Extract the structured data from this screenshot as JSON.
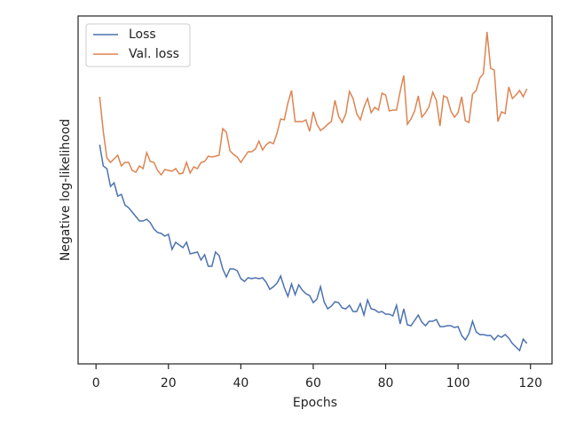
{
  "chart_data": {
    "type": "line",
    "xlabel": "Epochs",
    "ylabel": "Negative log-likelihood",
    "xlim": [
      -4.95,
      125.95
    ],
    "xticks": [
      0,
      20,
      40,
      60,
      80,
      100,
      120
    ],
    "ylim": [
      0,
      392
    ],
    "legend": "upper left",
    "x": [
      1,
      2,
      3,
      4,
      5,
      6,
      7,
      8,
      9,
      10,
      11,
      12,
      13,
      14,
      15,
      16,
      17,
      18,
      19,
      20,
      21,
      22,
      23,
      24,
      25,
      26,
      27,
      28,
      29,
      30,
      31,
      32,
      33,
      34,
      35,
      36,
      37,
      38,
      39,
      40,
      41,
      42,
      43,
      44,
      45,
      46,
      47,
      48,
      49,
      50,
      51,
      52,
      53,
      54,
      55,
      56,
      57,
      58,
      59,
      60,
      61,
      62,
      63,
      64,
      65,
      66,
      67,
      68,
      69,
      70,
      71,
      72,
      73,
      74,
      75,
      76,
      77,
      78,
      79,
      80,
      81,
      82,
      83,
      84,
      85,
      86,
      87,
      88,
      89,
      90,
      91,
      92,
      93,
      94,
      95,
      96,
      97,
      98,
      99,
      100,
      101,
      102,
      103,
      104,
      105,
      106,
      107,
      108,
      109,
      110,
      111,
      112,
      113,
      114,
      115,
      116,
      117,
      118,
      119
    ],
    "series": [
      {
        "name": "Loss",
        "color": "#4c72b0",
        "values": [
          247,
          223,
          220,
          200,
          204,
          189,
          191,
          179,
          176,
          171,
          166,
          161,
          161,
          163,
          159,
          152,
          148,
          147,
          144,
          146,
          129,
          137,
          134,
          131,
          137,
          124,
          125,
          126,
          117,
          123,
          110,
          110,
          126,
          122,
          107,
          98,
          107,
          107,
          105,
          96,
          93,
          97,
          96,
          97,
          96,
          97,
          92,
          84,
          87,
          91,
          99,
          86,
          76,
          90,
          78,
          89,
          83,
          79,
          77,
          69,
          73,
          87,
          70,
          62,
          65,
          70,
          69,
          63,
          62,
          66,
          59,
          59,
          68,
          55,
          72,
          62,
          61,
          58,
          59,
          56,
          56,
          54,
          66,
          45,
          62,
          44,
          43,
          49,
          55,
          47,
          43,
          48,
          48,
          50,
          42,
          42,
          43,
          43,
          41,
          42,
          32,
          27,
          34,
          48,
          36,
          33,
          33,
          32,
          32,
          27,
          32,
          30,
          33,
          29,
          23,
          19,
          15,
          28,
          23
        ]
      },
      {
        "name": "Val. loss",
        "color": "#dd8452",
        "values": [
          301,
          262,
          232,
          227,
          231,
          235,
          223,
          227,
          227,
          218,
          216,
          223,
          220,
          238,
          228,
          227,
          218,
          213,
          219,
          218,
          217,
          220,
          214,
          215,
          227,
          215,
          222,
          220,
          227,
          228,
          234,
          233,
          234,
          235,
          265,
          261,
          240,
          236,
          233,
          227,
          233,
          239,
          239,
          242,
          251,
          241,
          247,
          250,
          248,
          260,
          276,
          275,
          294,
          308,
          273,
          273,
          273,
          275,
          262,
          284,
          270,
          263,
          266,
          270,
          273,
          297,
          279,
          272,
          282,
          307,
          299,
          282,
          275,
          289,
          299,
          283,
          289,
          286,
          305,
          303,
          285,
          286,
          286,
          307,
          325,
          270,
          276,
          285,
          302,
          278,
          283,
          290,
          306,
          297,
          268,
          302,
          300,
          285,
          278,
          283,
          301,
          274,
          272,
          304,
          308,
          322,
          327,
          374,
          333,
          331,
          273,
          284,
          282,
          312,
          299,
          303,
          308,
          301,
          310
        ]
      }
    ]
  }
}
